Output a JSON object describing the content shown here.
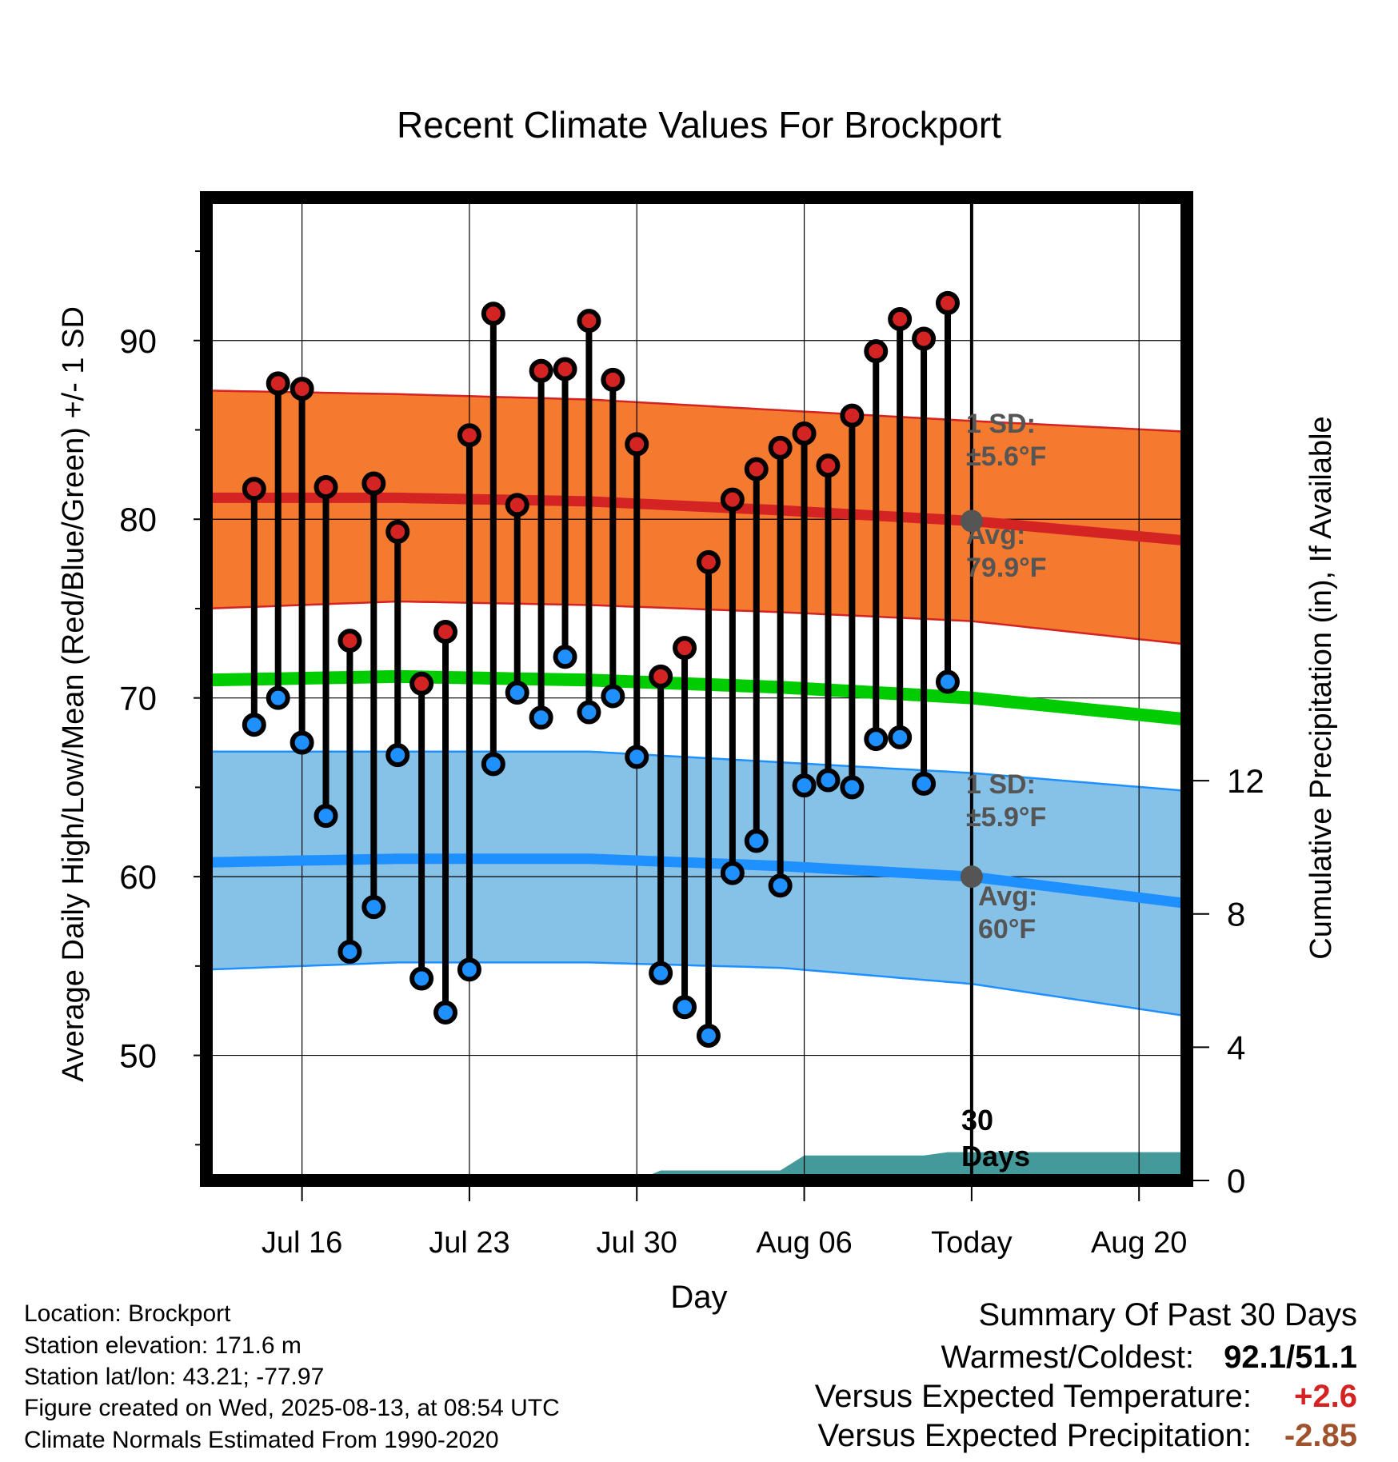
{
  "title": "Recent Climate Values For Brockport",
  "footer": {
    "location": "Location: Brockport",
    "elevation": "Station elevation: 171.6 m",
    "latlon": "Station lat/lon: 43.21; -77.97",
    "created": "Figure created on Wed, 2025-08-13, at 08:54 UTC",
    "normals": "Climate Normals Estimated From 1990-2020"
  },
  "summary": {
    "heading": "Summary Of Past 30 Days",
    "warm_cold_label": "Warmest/Coldest:",
    "warm_cold_value": "92.1/51.1",
    "temp_label": "Versus Expected Temperature:",
    "temp_value": "+2.6",
    "precip_label": "Versus Expected Precipitation:",
    "precip_value": "-2.85"
  },
  "colors": {
    "high_band": "#f47a30",
    "high_line": "#d42323",
    "low_band": "#86c1e8",
    "low_line": "#1e90ff",
    "mean_line": "#00cc00",
    "precip": "#449a9a",
    "today_marker": "#555555",
    "annotation": "#555555",
    "temp_value": "#d42323",
    "precip_value": "#a0522d"
  },
  "chart_data": {
    "type": "line",
    "title": "Recent Climate Values For Brockport",
    "xlabel": "Day",
    "ylabel": "Average Daily High/Low/Mean (Red/Blue/Green) +/- 1 SD",
    "y2label": "Cumulative Precipitation (in), If Available",
    "x_range": [
      "2025-07-12",
      "2025-08-22"
    ],
    "ylim": [
      43,
      98
    ],
    "y2lim": [
      0,
      29.5
    ],
    "x_ticks": [
      {
        "date": "2025-07-16",
        "label": "Jul 16"
      },
      {
        "date": "2025-07-23",
        "label": "Jul 23"
      },
      {
        "date": "2025-07-30",
        "label": "Jul 30"
      },
      {
        "date": "2025-08-06",
        "label": "Aug 06"
      },
      {
        "date": "2025-08-13",
        "label": "Today"
      },
      {
        "date": "2025-08-20",
        "label": "Aug 20"
      }
    ],
    "y_ticks": [
      50,
      60,
      70,
      80,
      90
    ],
    "y_minor_ticks": [
      45,
      55,
      65,
      75,
      85,
      95
    ],
    "y2_ticks": [
      0,
      4,
      8,
      12
    ],
    "grid": true,
    "today": "2025-08-13",
    "today_label": "30\nDays",
    "normal_high": {
      "name": "High",
      "dates": [
        "2025-07-12",
        "2025-07-20",
        "2025-07-28",
        "2025-08-05",
        "2025-08-13",
        "2025-08-22"
      ],
      "mean": [
        81.2,
        81.2,
        81.0,
        80.5,
        79.9,
        78.8
      ],
      "upper": [
        87.2,
        87.0,
        86.7,
        86.1,
        85.5,
        84.9
      ],
      "lower": [
        75.0,
        75.4,
        75.2,
        74.8,
        74.3,
        73.0
      ]
    },
    "normal_mean": {
      "name": "Mean",
      "dates": [
        "2025-07-12",
        "2025-07-20",
        "2025-07-28",
        "2025-08-05",
        "2025-08-13",
        "2025-08-22"
      ],
      "mean": [
        71.0,
        71.2,
        71.0,
        70.6,
        70.0,
        68.8
      ]
    },
    "normal_low": {
      "name": "Low",
      "dates": [
        "2025-07-12",
        "2025-07-20",
        "2025-07-28",
        "2025-08-05",
        "2025-08-13",
        "2025-08-22"
      ],
      "mean": [
        60.8,
        61.0,
        61.0,
        60.6,
        60.0,
        58.5
      ],
      "upper": [
        67.0,
        67.0,
        67.0,
        66.4,
        65.8,
        64.8
      ],
      "lower": [
        54.8,
        55.2,
        55.2,
        54.9,
        54.0,
        52.2
      ]
    },
    "annotations": {
      "high_sd": "1 SD:\n±5.6°F",
      "high_avg": "Avg:\n79.9°F",
      "low_sd": "1 SD:\n±5.9°F",
      "low_avg": "Avg:\n60°F"
    },
    "daily": {
      "dates": [
        "2025-07-14",
        "2025-07-15",
        "2025-07-16",
        "2025-07-17",
        "2025-07-18",
        "2025-07-19",
        "2025-07-20",
        "2025-07-21",
        "2025-07-22",
        "2025-07-23",
        "2025-07-24",
        "2025-07-25",
        "2025-07-26",
        "2025-07-27",
        "2025-07-28",
        "2025-07-29",
        "2025-07-30",
        "2025-07-31",
        "2025-08-01",
        "2025-08-02",
        "2025-08-03",
        "2025-08-04",
        "2025-08-05",
        "2025-08-06",
        "2025-08-07",
        "2025-08-08",
        "2025-08-09",
        "2025-08-10",
        "2025-08-11",
        "2025-08-12"
      ],
      "high": [
        81.7,
        87.6,
        87.3,
        81.8,
        73.2,
        82.0,
        79.3,
        70.8,
        73.7,
        84.7,
        91.5,
        80.8,
        88.3,
        88.4,
        91.1,
        87.8,
        84.2,
        71.2,
        72.8,
        77.6,
        81.1,
        82.8,
        84.0,
        84.8,
        83.0,
        85.8,
        89.4,
        91.2,
        90.1,
        92.1
      ],
      "low": [
        68.5,
        70.0,
        67.5,
        63.4,
        55.8,
        58.3,
        66.8,
        54.3,
        52.4,
        54.8,
        66.3,
        70.3,
        68.9,
        72.3,
        69.2,
        70.1,
        66.7,
        54.6,
        52.7,
        51.1,
        60.2,
        62.0,
        59.5,
        65.1,
        65.4,
        65.0,
        67.7,
        67.8,
        65.2,
        70.9
      ]
    },
    "precip_cumulative": {
      "dates": [
        "2025-07-12",
        "2025-07-30",
        "2025-07-31",
        "2025-08-05",
        "2025-08-06",
        "2025-08-11",
        "2025-08-12",
        "2025-08-22"
      ],
      "values": [
        0.0,
        0.0,
        0.3,
        0.3,
        0.75,
        0.75,
        0.85,
        0.85
      ]
    }
  }
}
